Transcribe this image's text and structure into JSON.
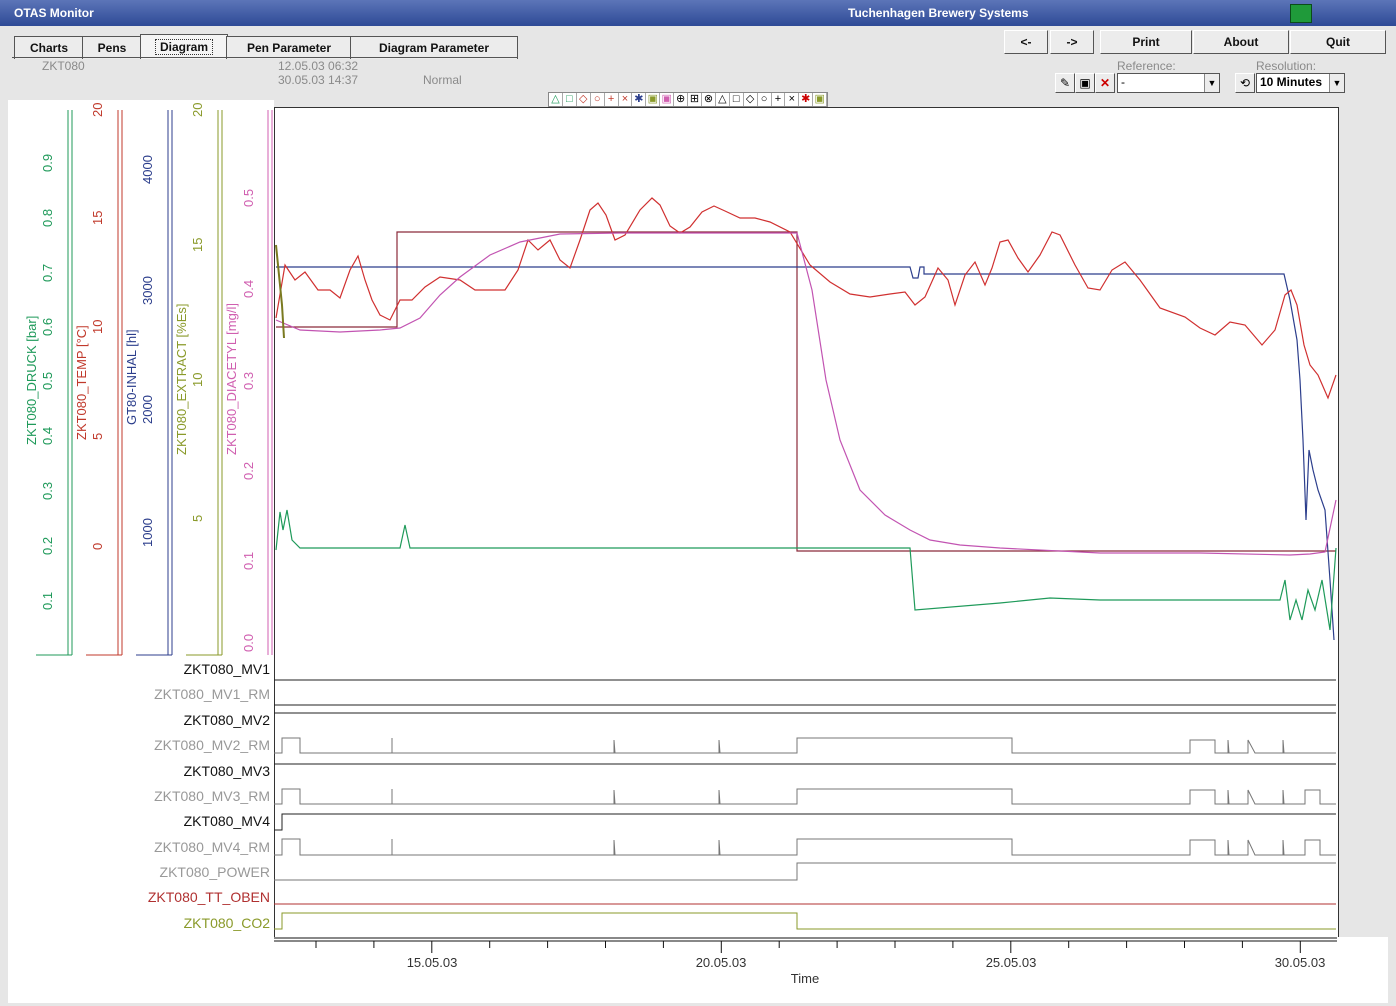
{
  "window": {
    "app_title": "OTAS Monitor",
    "company": "Tuchenhagen Brewery Systems",
    "printer_icon": "printer-icon"
  },
  "tabs": [
    {
      "label": "Charts"
    },
    {
      "label": "Pens"
    },
    {
      "label": "Diagram",
      "active": true
    },
    {
      "label": "Pen Parameter"
    },
    {
      "label": "Diagram Parameter"
    }
  ],
  "toolbar": {
    "back": "<-",
    "forward": "->",
    "print": "Print",
    "about": "About",
    "quit": "Quit"
  },
  "info": {
    "tank": "ZKT080",
    "start": "12.05.03 06:32",
    "end": "30.05.03 14:37",
    "mode": "Normal"
  },
  "reference": {
    "label": "Reference:",
    "value": "-"
  },
  "resolution": {
    "label": "Resolution:",
    "value": "10 Minutes"
  },
  "axes": [
    {
      "label": "ZKT080_DRUCK [bar]",
      "color": "#1f9a5a",
      "ticks": [
        "0.1",
        "0.2",
        "0.3",
        "0.4",
        "0.5",
        "0.6",
        "0.7",
        "0.8",
        "0.9"
      ]
    },
    {
      "label": "ZKT080_TEMP [°C]",
      "color": "#c0392b",
      "ticks": [
        "0",
        "5",
        "10",
        "15",
        "20"
      ]
    },
    {
      "label": "GT80-INHAL [hl]",
      "color": "#2c3e8c",
      "ticks": [
        "1000",
        "2000",
        "3000",
        "4000"
      ]
    },
    {
      "label": "ZKT080_EXTRACT [%Es]",
      "color": "#8a9a2a",
      "ticks": [
        "5",
        "10",
        "15",
        "20"
      ]
    },
    {
      "label": "ZKT080_DIACETYL [mg/l]",
      "color": "#d05fb0",
      "ticks": [
        "0.0",
        "0.1",
        "0.2",
        "0.3",
        "0.4",
        "0.5"
      ]
    }
  ],
  "digital_signals": [
    {
      "name": "ZKT080_MV1",
      "active": true
    },
    {
      "name": "ZKT080_MV1_RM",
      "active": false
    },
    {
      "name": "ZKT080_MV2",
      "active": true
    },
    {
      "name": "ZKT080_MV2_RM",
      "active": false
    },
    {
      "name": "ZKT080_MV3",
      "active": true
    },
    {
      "name": "ZKT080_MV3_RM",
      "active": false
    },
    {
      "name": "ZKT080_MV4",
      "active": true
    },
    {
      "name": "ZKT080_MV4_RM",
      "active": false
    },
    {
      "name": "ZKT080_POWER",
      "active": false
    },
    {
      "name": "ZKT080_TT_OBEN",
      "active": true,
      "color": "#b03030"
    },
    {
      "name": "ZKT080_CO2",
      "active": false,
      "color": "#8a9a2a"
    }
  ],
  "x_axis": {
    "label": "Time",
    "ticks": [
      "15.05.03",
      "20.05.03",
      "25.05.03",
      "30.05.03"
    ]
  }
}
